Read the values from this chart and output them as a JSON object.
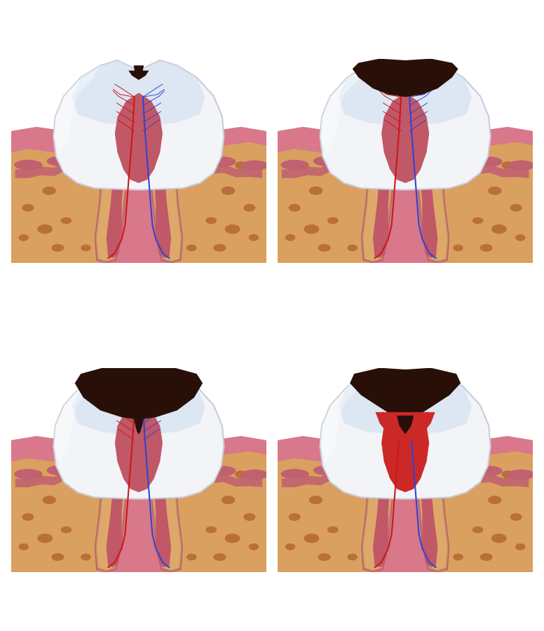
{
  "bg": "#ffffff",
  "c_enamel_fill": "#f2f4f8",
  "c_enamel_hi": "#ccddf0",
  "c_enamel_edge": "#c8ccd8",
  "c_dentin": "#dea86a",
  "c_dentin_edge": "#c08040",
  "c_pulp": "#c05868",
  "c_pulp_inner": "#d87088",
  "c_root_canal": "#b04858",
  "c_cementum": "#c09060",
  "c_perio": "#c06070",
  "c_gum_pink": "#d8788a",
  "c_gum_dark": "#c06070",
  "c_bone": "#daa060",
  "c_bone2": "#c88848",
  "c_bone_spot": "#b87038",
  "c_caries": "#281008",
  "c_inflamed": "#cc2828",
  "c_nerve_red": "#cc1818",
  "c_nerve_blue": "#3344cc",
  "figw": 7.76,
  "figh": 9.0,
  "dpi": 100
}
